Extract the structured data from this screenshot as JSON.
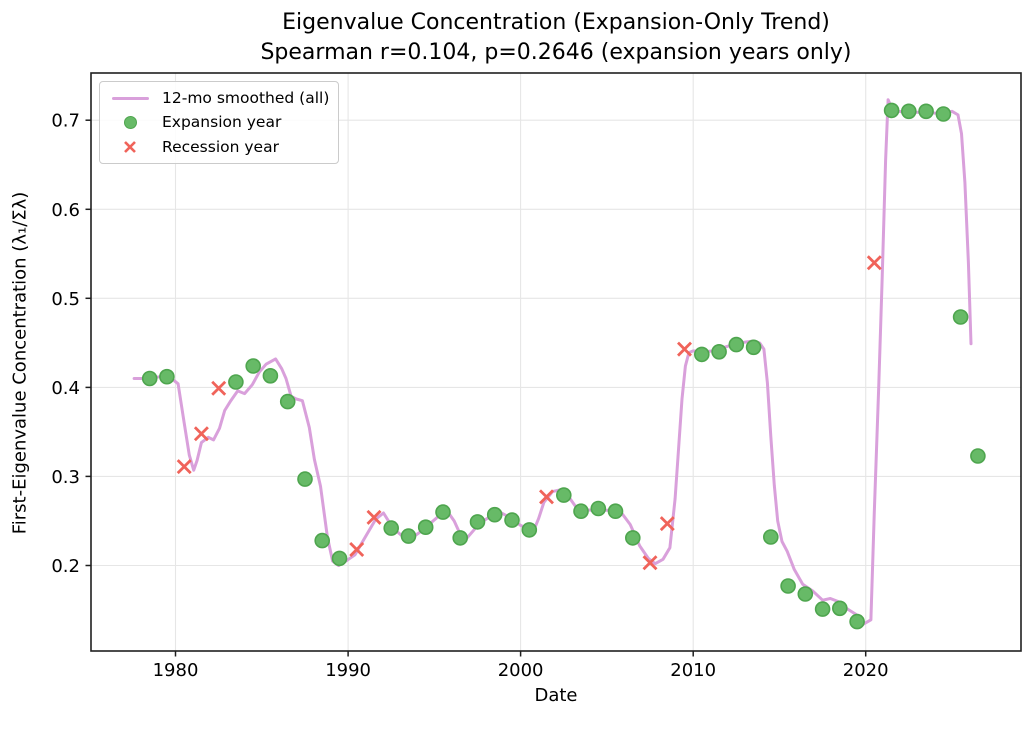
{
  "figure": {
    "title_line1": "Eigenvalue Concentration (Expansion-Only Trend)",
    "title_line2": "Spearman r=0.104, p=0.2646 (expansion years only)"
  },
  "stats": {
    "spearman_r": "0.104",
    "p_value": "0.2646",
    "scope": "expansion years only"
  },
  "legend": {
    "items": [
      {
        "label": "12-mo smoothed (all)",
        "marker": "line"
      },
      {
        "label": "Expansion year",
        "marker": "dot"
      },
      {
        "label": "Recession year",
        "marker": "x"
      }
    ]
  },
  "chart_data": {
    "type": "line",
    "title": "Eigenvalue Concentration (Expansion-Only Trend)",
    "subtitle": "Spearman r=0.104, p=0.2646 (expansion years only)",
    "xlabel": "Date",
    "ylabel": "First-Eigenvalue Concentration (λ₁/Σλ)",
    "x_ticks": [
      1980,
      1990,
      2000,
      2010,
      2020
    ],
    "y_ticks": [
      0.2,
      0.3,
      0.4,
      0.5,
      0.6,
      0.7
    ],
    "xlim": [
      1975.1,
      2029.0
    ],
    "ylim": [
      0.104,
      0.753
    ],
    "grid": true,
    "legend_position": "upper left",
    "marker_year_offset": 0.5,
    "colors": {
      "line": "#D9A0DB",
      "expansion_fill": "#67BA67",
      "expansion_edge": "#4EA54E",
      "recession": "#F0635A",
      "grid": "#E6E6E6",
      "spine": "#1F1F1F",
      "text": "#000000"
    },
    "series": [
      {
        "name": "12-mo smoothed (all)",
        "type": "line",
        "points": [
          [
            1977.6,
            0.41
          ],
          [
            1978.4,
            0.41
          ],
          [
            1979.1,
            0.412
          ],
          [
            1979.7,
            0.411
          ],
          [
            1980.15,
            0.404
          ],
          [
            1980.5,
            0.36
          ],
          [
            1980.8,
            0.324
          ],
          [
            1981.05,
            0.307
          ],
          [
            1981.25,
            0.318
          ],
          [
            1981.5,
            0.338
          ],
          [
            1981.9,
            0.344
          ],
          [
            1982.2,
            0.341
          ],
          [
            1982.55,
            0.354
          ],
          [
            1982.85,
            0.374
          ],
          [
            1983.2,
            0.385
          ],
          [
            1983.6,
            0.396
          ],
          [
            1984.0,
            0.393
          ],
          [
            1984.45,
            0.403
          ],
          [
            1984.85,
            0.417
          ],
          [
            1985.25,
            0.426
          ],
          [
            1985.8,
            0.432
          ],
          [
            1986.15,
            0.421
          ],
          [
            1986.4,
            0.41
          ],
          [
            1986.7,
            0.39
          ],
          [
            1987.0,
            0.387
          ],
          [
            1987.35,
            0.385
          ],
          [
            1987.75,
            0.355
          ],
          [
            1988.05,
            0.319
          ],
          [
            1988.4,
            0.289
          ],
          [
            1988.8,
            0.232
          ],
          [
            1989.1,
            0.205
          ],
          [
            1989.45,
            0.2
          ],
          [
            1989.95,
            0.206
          ],
          [
            1990.4,
            0.212
          ],
          [
            1991.0,
            0.232
          ],
          [
            1991.6,
            0.252
          ],
          [
            1992.05,
            0.259
          ],
          [
            1992.6,
            0.242
          ],
          [
            1993.15,
            0.233
          ],
          [
            1993.7,
            0.231
          ],
          [
            1994.2,
            0.238
          ],
          [
            1994.75,
            0.247
          ],
          [
            1995.35,
            0.257
          ],
          [
            1995.75,
            0.261
          ],
          [
            1996.15,
            0.25
          ],
          [
            1996.55,
            0.233
          ],
          [
            1996.85,
            0.23
          ],
          [
            1997.25,
            0.239
          ],
          [
            1997.65,
            0.248
          ],
          [
            1998.25,
            0.255
          ],
          [
            1998.9,
            0.259
          ],
          [
            1999.45,
            0.253
          ],
          [
            2000.0,
            0.245
          ],
          [
            2000.45,
            0.241
          ],
          [
            2000.75,
            0.239
          ],
          [
            2001.05,
            0.253
          ],
          [
            2001.35,
            0.271
          ],
          [
            2001.85,
            0.283
          ],
          [
            2002.3,
            0.285
          ],
          [
            2002.6,
            0.283
          ],
          [
            2002.9,
            0.274
          ],
          [
            2003.2,
            0.266
          ],
          [
            2003.6,
            0.263
          ],
          [
            2004.1,
            0.262
          ],
          [
            2004.6,
            0.262
          ],
          [
            2005.1,
            0.262
          ],
          [
            2005.5,
            0.261
          ],
          [
            2005.85,
            0.259
          ],
          [
            2006.35,
            0.246
          ],
          [
            2006.9,
            0.222
          ],
          [
            2007.4,
            0.208
          ],
          [
            2007.8,
            0.202
          ],
          [
            2008.25,
            0.207
          ],
          [
            2008.65,
            0.22
          ],
          [
            2008.95,
            0.275
          ],
          [
            2009.15,
            0.33
          ],
          [
            2009.35,
            0.387
          ],
          [
            2009.55,
            0.424
          ],
          [
            2009.75,
            0.439
          ],
          [
            2010.0,
            0.441
          ],
          [
            2010.6,
            0.44
          ],
          [
            2011.2,
            0.441
          ],
          [
            2011.8,
            0.445
          ],
          [
            2012.5,
            0.449
          ],
          [
            2013.05,
            0.451
          ],
          [
            2013.45,
            0.452
          ],
          [
            2013.85,
            0.45
          ],
          [
            2014.1,
            0.443
          ],
          [
            2014.3,
            0.405
          ],
          [
            2014.5,
            0.345
          ],
          [
            2014.7,
            0.29
          ],
          [
            2014.9,
            0.25
          ],
          [
            2015.15,
            0.227
          ],
          [
            2015.45,
            0.216
          ],
          [
            2015.85,
            0.196
          ],
          [
            2016.35,
            0.179
          ],
          [
            2016.95,
            0.171
          ],
          [
            2017.5,
            0.161
          ],
          [
            2017.95,
            0.163
          ],
          [
            2018.35,
            0.16
          ],
          [
            2018.95,
            0.151
          ],
          [
            2019.45,
            0.145
          ],
          [
            2019.85,
            0.134
          ],
          [
            2020.3,
            0.139
          ],
          [
            2020.5,
            0.26
          ],
          [
            2020.75,
            0.4
          ],
          [
            2020.95,
            0.52
          ],
          [
            2021.15,
            0.655
          ],
          [
            2021.3,
            0.723
          ],
          [
            2021.5,
            0.714
          ],
          [
            2021.8,
            0.71
          ],
          [
            2022.5,
            0.709
          ],
          [
            2023.3,
            0.709
          ],
          [
            2024.0,
            0.708
          ],
          [
            2024.6,
            0.708
          ],
          [
            2025.0,
            0.71
          ],
          [
            2025.35,
            0.706
          ],
          [
            2025.55,
            0.685
          ],
          [
            2025.75,
            0.63
          ],
          [
            2025.95,
            0.54
          ],
          [
            2026.1,
            0.449
          ]
        ]
      },
      {
        "name": "Expansion year",
        "type": "scatter",
        "marker": "circle",
        "points": [
          [
            1978,
            0.41
          ],
          [
            1979,
            0.412
          ],
          [
            1983,
            0.406
          ],
          [
            1984,
            0.424
          ],
          [
            1985,
            0.413
          ],
          [
            1986,
            0.384
          ],
          [
            1987,
            0.297
          ],
          [
            1988,
            0.228
          ],
          [
            1989,
            0.208
          ],
          [
            1992,
            0.242
          ],
          [
            1993,
            0.233
          ],
          [
            1994,
            0.243
          ],
          [
            1995,
            0.26
          ],
          [
            1996,
            0.231
          ],
          [
            1997,
            0.249
          ],
          [
            1998,
            0.257
          ],
          [
            1999,
            0.251
          ],
          [
            2000,
            0.24
          ],
          [
            2002,
            0.279
          ],
          [
            2003,
            0.261
          ],
          [
            2004,
            0.264
          ],
          [
            2005,
            0.261
          ],
          [
            2006,
            0.231
          ],
          [
            2010,
            0.437
          ],
          [
            2011,
            0.44
          ],
          [
            2012,
            0.448
          ],
          [
            2013,
            0.445
          ],
          [
            2014,
            0.232
          ],
          [
            2015,
            0.177
          ],
          [
            2016,
            0.168
          ],
          [
            2017,
            0.151
          ],
          [
            2018,
            0.152
          ],
          [
            2019,
            0.137
          ],
          [
            2021,
            0.711
          ],
          [
            2022,
            0.71
          ],
          [
            2023,
            0.71
          ],
          [
            2024,
            0.707
          ],
          [
            2025,
            0.479
          ],
          [
            2026,
            0.323
          ]
        ]
      },
      {
        "name": "Recession year",
        "type": "scatter",
        "marker": "x",
        "points": [
          [
            1980,
            0.311
          ],
          [
            1981,
            0.348
          ],
          [
            1982,
            0.399
          ],
          [
            1990,
            0.218
          ],
          [
            1991,
            0.254
          ],
          [
            2001,
            0.277
          ],
          [
            2007,
            0.203
          ],
          [
            2008,
            0.247
          ],
          [
            2009,
            0.443
          ],
          [
            2020,
            0.54
          ]
        ]
      }
    ]
  }
}
